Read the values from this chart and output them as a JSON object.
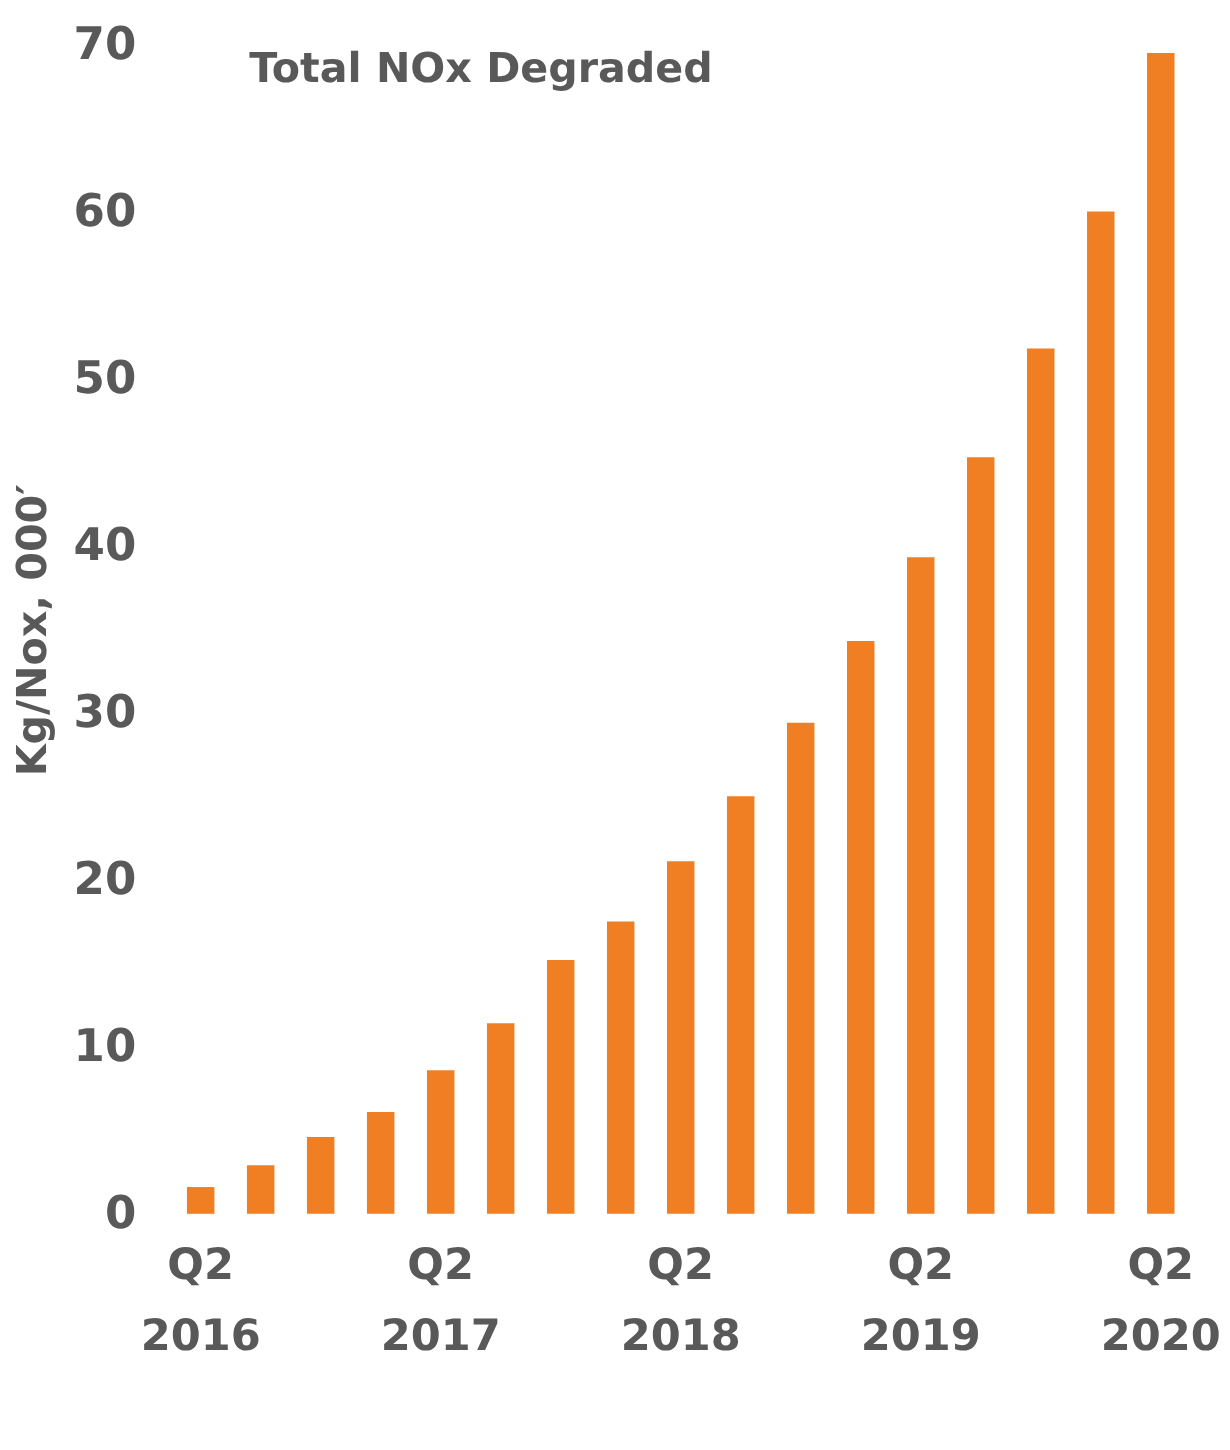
{
  "chart_data": {
    "type": "bar",
    "title": "Total NOx  Degraded",
    "ylabel": "Kg/Nox, 000′",
    "categories": [
      "Q2\n2016",
      null,
      null,
      null,
      "Q2\n2017",
      null,
      null,
      null,
      "Q2\n2018",
      null,
      null,
      null,
      "Q2\n2019",
      null,
      null,
      null,
      "Q2\n2020"
    ],
    "values": [
      1.6,
      2.9,
      4.6,
      6.1,
      8.6,
      11.4,
      15.2,
      17.5,
      21.1,
      25.0,
      29.4,
      34.3,
      39.3,
      45.3,
      51.8,
      60.0,
      69.5
    ],
    "color": "#f07f24",
    "ylim": [
      0,
      70
    ],
    "yticks": [
      0,
      10,
      20,
      30,
      40,
      50,
      60,
      70
    ],
    "grid": false
  }
}
